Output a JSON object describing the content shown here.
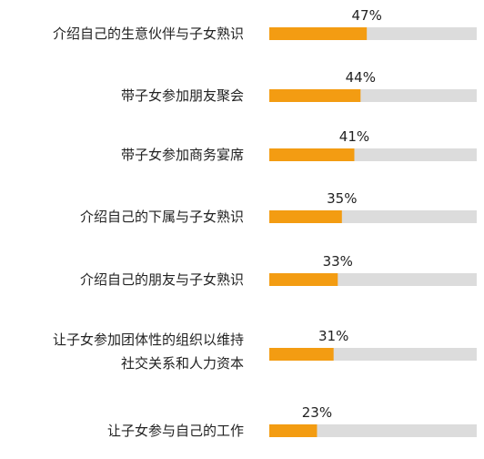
{
  "chart_data": {
    "type": "bar",
    "orientation": "horizontal",
    "categories": [
      [
        "介绍自己的生意伙伴与子女熟识"
      ],
      [
        "带子女参加朋友聚会"
      ],
      [
        "带子女参加商务宴席"
      ],
      [
        "介绍自己的下属与子女熟识"
      ],
      [
        "介绍自己的朋友与子女熟识"
      ],
      [
        "让子女参加团体性的组织以维持",
        "社交关系和人力资本"
      ],
      [
        "让子女参与自己的工作"
      ]
    ],
    "values": [
      47,
      44,
      41,
      35,
      33,
      31,
      23
    ],
    "value_labels": [
      "47%",
      "44%",
      "41%",
      "35%",
      "33%",
      "31%",
      "23%"
    ],
    "xlim": [
      0,
      100
    ],
    "grid": false,
    "colors": {
      "bar": "#f39c12",
      "track": "#dcdcdc",
      "text": "#222222"
    }
  }
}
